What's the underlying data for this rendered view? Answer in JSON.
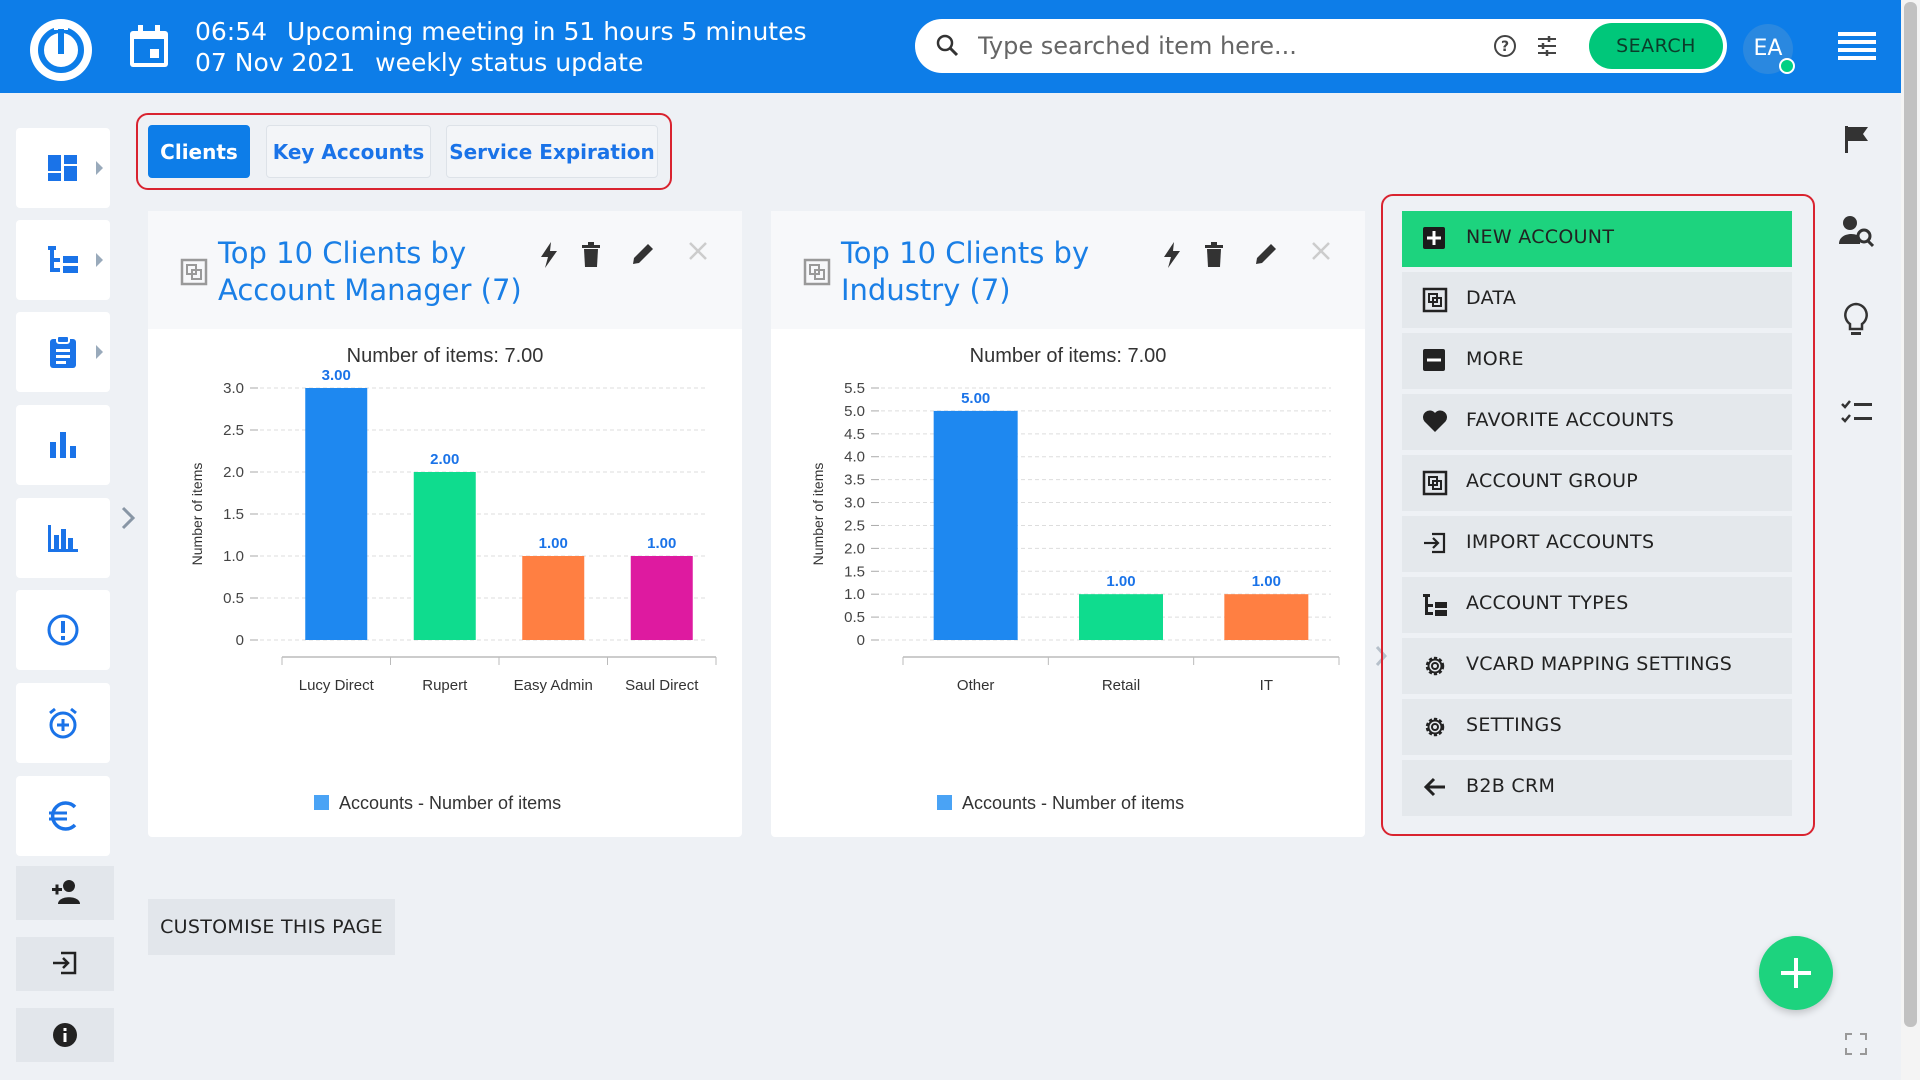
{
  "header": {
    "time": "06:54",
    "meeting_text": "Upcoming meeting in 51 hours 5 minutes",
    "date": "07 Nov 2021",
    "meeting_name": "weekly status update",
    "search_placeholder": "Type searched item here...",
    "search_button": "SEARCH",
    "avatar_initials": "EA"
  },
  "tabs": [
    {
      "label": "Clients",
      "active": true
    },
    {
      "label": "Key Accounts",
      "active": false
    },
    {
      "label": "Service Expiration",
      "active": false
    }
  ],
  "widgets": [
    {
      "title": "Top 10 Clients by Account Manager (7)",
      "chart_data": {
        "type": "bar",
        "title": "Number of items: 7.00",
        "ylabel": "Number of items",
        "xlabel": "",
        "categories": [
          "Lucy Direct",
          "Rupert",
          "Easy Admin",
          "Saul Direct"
        ],
        "values": [
          3.0,
          2.0,
          1.0,
          1.0
        ],
        "value_labels": [
          "3.00",
          "2.00",
          "1.00",
          "1.00"
        ],
        "colors": [
          "#1e88f0",
          "#0fdc8e",
          "#ff7f42",
          "#de1aa0"
        ],
        "ylim": [
          0,
          3.0
        ],
        "yticks": [
          "0",
          "0.5",
          "1.0",
          "1.5",
          "2.0",
          "2.5",
          "3.0"
        ],
        "legend": "Accounts - Number of items",
        "legend_position": "bottom",
        "grid": true
      }
    },
    {
      "title": "Top 10 Clients by Industry (7)",
      "chart_data": {
        "type": "bar",
        "title": "Number of items: 7.00",
        "ylabel": "Number of items",
        "xlabel": "",
        "categories": [
          "Other",
          "Retail",
          "IT"
        ],
        "values": [
          5.0,
          1.0,
          1.0
        ],
        "value_labels": [
          "5.00",
          "1.00",
          "1.00"
        ],
        "colors": [
          "#1e88f0",
          "#0fdc8e",
          "#ff7f42"
        ],
        "ylim": [
          0,
          5.5
        ],
        "yticks": [
          "0",
          "0.5",
          "1.0",
          "1.5",
          "2.0",
          "2.5",
          "3.0",
          "3.5",
          "4.0",
          "4.5",
          "5.0",
          "5.5"
        ],
        "legend": "Accounts - Number of items",
        "legend_position": "bottom",
        "grid": true
      }
    }
  ],
  "action_menu": [
    {
      "label": "NEW ACCOUNT",
      "icon": "plus-square-icon"
    },
    {
      "label": "DATA",
      "icon": "data-icon"
    },
    {
      "label": "MORE",
      "icon": "minus-square-icon"
    },
    {
      "label": "FAVORITE ACCOUNTS",
      "icon": "heart-icon"
    },
    {
      "label": "ACCOUNT GROUP",
      "icon": "group-icon"
    },
    {
      "label": "IMPORT ACCOUNTS",
      "icon": "import-icon"
    },
    {
      "label": "ACCOUNT TYPES",
      "icon": "tree-icon"
    },
    {
      "label": "VCARD MAPPING SETTINGS",
      "icon": "gear-icon"
    },
    {
      "label": "SETTINGS",
      "icon": "gear-icon"
    },
    {
      "label": "B2B CRM",
      "icon": "arrow-left-icon"
    }
  ],
  "customise_label": "CUSTOMISE THIS PAGE",
  "colors": {
    "brand_blue": "#0d7de8",
    "accent_green": "#1dd37e",
    "highlight_red": "#d9232f"
  }
}
